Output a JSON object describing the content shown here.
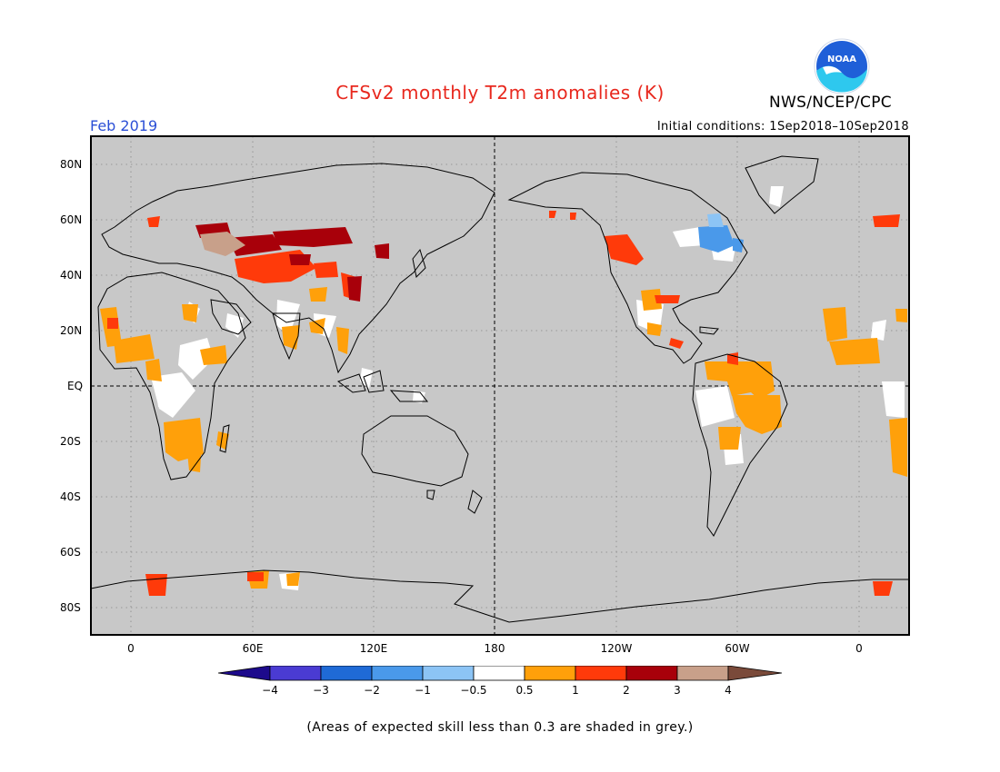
{
  "header": {
    "title": "CFSv2 monthly T2m anomalies (K)",
    "agency": "NWS/NCEP/CPC",
    "month": "Feb 2019",
    "initial_conditions": "Initial conditions: 1Sep2018–10Sep2018",
    "logo_text": "NOAA"
  },
  "axes": {
    "lat_labels": [
      "80N",
      "60N",
      "40N",
      "20N",
      "EQ",
      "20S",
      "40S",
      "60S",
      "80S"
    ],
    "lon_labels": [
      "0",
      "60E",
      "120E",
      "180",
      "120W",
      "60W",
      "0"
    ]
  },
  "colorbar": {
    "labels": [
      "−4",
      "−3",
      "−2",
      "−1",
      "−0.5",
      "0.5",
      "1",
      "2",
      "3",
      "4"
    ],
    "colors": [
      "#1d0a8c",
      "#4a3bd2",
      "#1f6ad6",
      "#4a99ea",
      "#8cc4f5",
      "#ffffff",
      "#ffa00a",
      "#ff3a0a",
      "#a8000a",
      "#c8a08a",
      "#7a4a3a"
    ]
  },
  "map": {
    "background_color": "#c8c8c8",
    "coastline_color": "#000000",
    "region_colors": {
      "neutral_white": "#ffffff",
      "warm_05_1": "#ffa00a",
      "warm_1_2": "#ff3a0a",
      "warm_2_3": "#a8000a",
      "warm_3_4": "#c8a08a",
      "cool_05_1": "#8cc4f5",
      "cool_1_2": "#4a99ea"
    }
  },
  "footnote": "(Areas of expected skill less than 0.3 are shaded in grey.)"
}
